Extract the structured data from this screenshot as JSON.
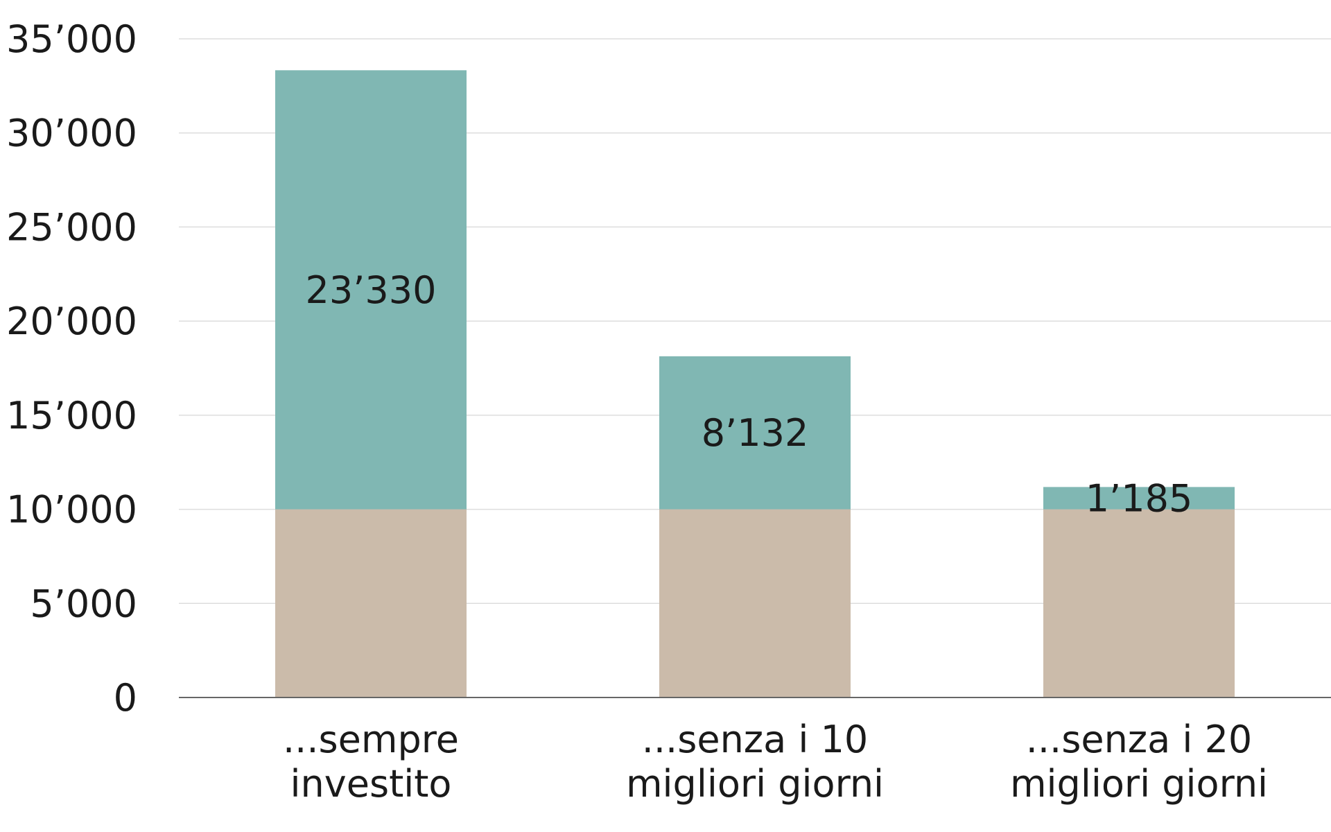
{
  "chart_data": {
    "type": "bar",
    "stacked": true,
    "categories": [
      [
        "...sempre",
        "investito"
      ],
      [
        "...senza i 10",
        "migliori giorni"
      ],
      [
        "...senza i 20",
        "migliori giorni"
      ]
    ],
    "series": [
      {
        "values": [
          10000,
          10000,
          10000
        ],
        "color": "#cbbbaa"
      },
      {
        "values": [
          23330,
          8132,
          1185
        ],
        "color": "#80b7b3",
        "labels": [
          "23’330",
          "8’132",
          "1’185"
        ]
      }
    ],
    "ylim": [
      0,
      35000
    ],
    "yticks": [
      0,
      5000,
      10000,
      15000,
      20000,
      25000,
      30000,
      35000
    ],
    "ytick_labels": [
      "0",
      "5’000",
      "10’000",
      "15’000",
      "20’000",
      "25’000",
      "30’000",
      "35’000"
    ],
    "grid": true,
    "gridline_color": "#dddddd",
    "axis_color": "#666666",
    "title": "",
    "xlabel": "",
    "ylabel": ""
  }
}
